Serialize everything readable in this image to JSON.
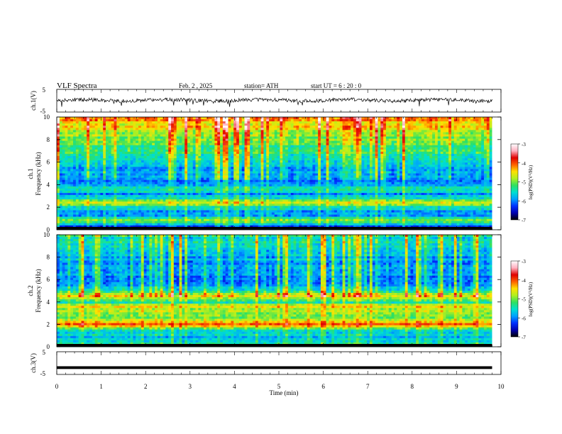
{
  "header": {
    "title": "VLF  Spectra",
    "date": "Feb. 2  , 2025",
    "station": "station= ATH",
    "start": "start  UT  =    6  : 20 : 0"
  },
  "colors": {
    "spectrum_scale": [
      "#000000",
      "#0000b0",
      "#0030ff",
      "#00a0ff",
      "#00e0d0",
      "#30e060",
      "#b0f020",
      "#ffe000",
      "#ff6000",
      "#e00000",
      "#ffb0c0",
      "#ffffff"
    ],
    "waveform": "#000000"
  },
  "chart_data": [
    {
      "type": "line",
      "panel": "ch1-waveform",
      "ylabel": "ch.1(V)",
      "yticks": [
        "5",
        "-5"
      ],
      "ylim": [
        -5,
        5
      ],
      "xlim": [
        0,
        10
      ],
      "description_level": "noisy waveform centred near 0 V, amplitude about ±1 V, spikes to about -2.5 V",
      "approx_series": {
        "name": "",
        "x_end": 9.8,
        "mean": 0.2,
        "amplitude": 0.8
      }
    },
    {
      "type": "heatmap",
      "panel": "ch1-spectrogram",
      "ylabel_top": "ch.1",
      "ylabel": "Frequency  (kHz)",
      "yticks": [
        "0",
        "2",
        "4",
        "6",
        "8",
        "10"
      ],
      "ylim": [
        0,
        10
      ],
      "xlim": [
        0,
        10
      ],
      "data_x_end": 9.8,
      "colorbar": {
        "label": "log(PSD)(V²/Hz)",
        "ticks": [
          "-3",
          "-4",
          "-5",
          "-6",
          "-7"
        ],
        "range": [
          -7,
          -3
        ]
      },
      "profile_khz": [
        {
          "f": 0.2,
          "v": -6.8
        },
        {
          "f": 0.8,
          "v": -5.0
        },
        {
          "f": 1.2,
          "v": -6.0
        },
        {
          "f": 1.6,
          "v": -6.1
        },
        {
          "f": 2.0,
          "v": -5.5
        },
        {
          "f": 2.4,
          "v": -4.8
        },
        {
          "f": 2.8,
          "v": -5.6
        },
        {
          "f": 3.2,
          "v": -6.0
        },
        {
          "f": 3.6,
          "v": -5.4
        },
        {
          "f": 4.0,
          "v": -6.1
        },
        {
          "f": 5.0,
          "v": -6.0
        },
        {
          "f": 6.0,
          "v": -5.9
        },
        {
          "f": 7.0,
          "v": -5.5
        },
        {
          "f": 8.0,
          "v": -5.2
        },
        {
          "f": 9.0,
          "v": -4.8
        },
        {
          "f": 10.0,
          "v": -4.4
        }
      ]
    },
    {
      "type": "heatmap",
      "panel": "ch2-spectrogram",
      "ylabel_top": "ch.2",
      "ylabel": "Frequency  (kHz)",
      "yticks": [
        "0",
        "2",
        "4",
        "6",
        "8",
        "10"
      ],
      "ylim": [
        0,
        10
      ],
      "xlim": [
        0,
        10
      ],
      "data_x_end": 9.8,
      "colorbar": {
        "label": "log(PSD)(V²/Hz)",
        "ticks": [
          "-3",
          "-4",
          "-5",
          "-6",
          "-7"
        ],
        "range": [
          -7,
          -3
        ]
      },
      "profile_khz": [
        {
          "f": 0.2,
          "v": -5.6
        },
        {
          "f": 0.8,
          "v": -5.8
        },
        {
          "f": 1.5,
          "v": -5.7
        },
        {
          "f": 2.0,
          "v": -4.2
        },
        {
          "f": 2.6,
          "v": -5.0
        },
        {
          "f": 3.0,
          "v": -5.2
        },
        {
          "f": 3.6,
          "v": -4.6
        },
        {
          "f": 4.0,
          "v": -5.6
        },
        {
          "f": 4.6,
          "v": -4.5
        },
        {
          "f": 5.0,
          "v": -5.9
        },
        {
          "f": 6.0,
          "v": -6.2
        },
        {
          "f": 7.0,
          "v": -6.2
        },
        {
          "f": 8.0,
          "v": -6.0
        },
        {
          "f": 9.0,
          "v": -5.8
        },
        {
          "f": 10.0,
          "v": -5.6
        }
      ]
    },
    {
      "type": "line",
      "panel": "ch3-waveform",
      "ylabel": "ch.3(V)",
      "yticks": [
        "5",
        "-5"
      ],
      "ylim": [
        -5,
        5
      ],
      "xlim": [
        0,
        10
      ],
      "approx_series": {
        "name": "",
        "x_end": 9.8,
        "mean": -2.0,
        "amplitude": 0.15
      }
    }
  ],
  "xaxis": {
    "label": "Time  (min)",
    "ticks": [
      "0",
      "1",
      "2",
      "3",
      "4",
      "5",
      "6",
      "7",
      "8",
      "9",
      "10"
    ]
  }
}
